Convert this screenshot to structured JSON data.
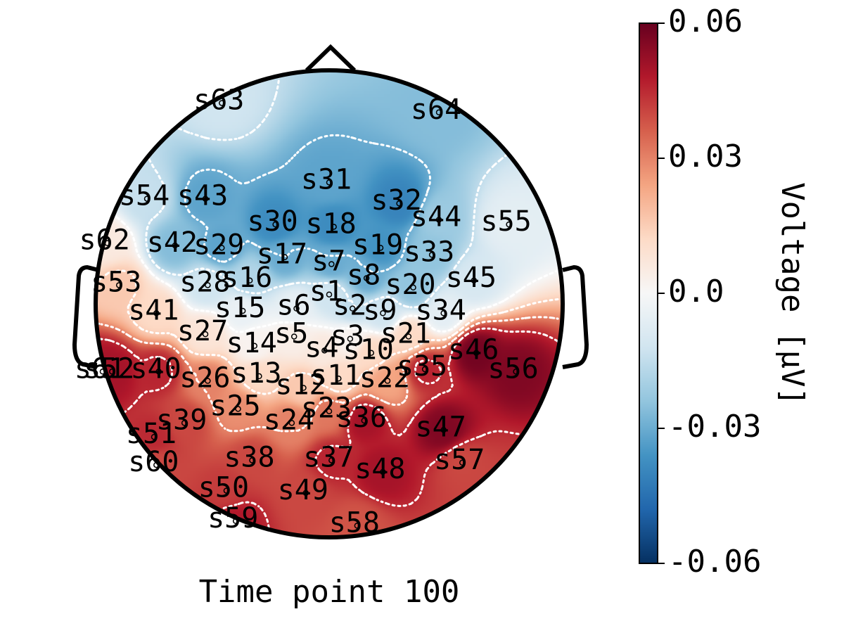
{
  "chart_data": {
    "type": "heatmap",
    "subtype": "topographic-map",
    "title": "Time point 100",
    "colorbar": {
      "label": "Voltage [µV]",
      "range": [
        -0.06,
        0.06
      ],
      "ticks": [
        {
          "value": 0.06,
          "label": "0.06"
        },
        {
          "value": 0.03,
          "label": "0.03"
        },
        {
          "value": 0.0,
          "label": "0.0"
        },
        {
          "value": -0.03,
          "label": "-0.03"
        },
        {
          "value": -0.06,
          "label": "-0.06"
        }
      ],
      "colormap": [
        "#053061",
        "#2166ac",
        "#4393c3",
        "#92c5de",
        "#d1e5f0",
        "#f7f7f7",
        "#fddbc7",
        "#f4a582",
        "#d6604d",
        "#b2182b",
        "#67001f"
      ]
    },
    "contours": {
      "color": "#ffffff",
      "style": "dotted"
    },
    "sensors": [
      {
        "name": "s1",
        "x": 0.0,
        "y": 0.04,
        "value": -0.012
      },
      {
        "name": "s2",
        "x": 0.1,
        "y": -0.02,
        "value": -0.015
      },
      {
        "name": "s3",
        "x": 0.09,
        "y": -0.15,
        "value": 0.002
      },
      {
        "name": "s4",
        "x": -0.02,
        "y": -0.2,
        "value": 0.006
      },
      {
        "name": "s5",
        "x": -0.15,
        "y": -0.14,
        "value": 0.004
      },
      {
        "name": "s6",
        "x": -0.14,
        "y": -0.02,
        "value": -0.005
      },
      {
        "name": "s7",
        "x": 0.01,
        "y": 0.17,
        "value": -0.03
      },
      {
        "name": "s8",
        "x": 0.16,
        "y": 0.11,
        "value": -0.03
      },
      {
        "name": "s9",
        "x": 0.23,
        "y": -0.04,
        "value": -0.012
      },
      {
        "name": "s10",
        "x": 0.18,
        "y": -0.21,
        "value": 0.012
      },
      {
        "name": "s11",
        "x": 0.04,
        "y": -0.32,
        "value": 0.012
      },
      {
        "name": "s12",
        "x": -0.11,
        "y": -0.36,
        "value": 0.016
      },
      {
        "name": "s13",
        "x": -0.3,
        "y": -0.31,
        "value": 0.012
      },
      {
        "name": "s14",
        "x": -0.32,
        "y": -0.18,
        "value": 0.002
      },
      {
        "name": "s15",
        "x": -0.37,
        "y": -0.03,
        "value": -0.004
      },
      {
        "name": "s16",
        "x": -0.34,
        "y": 0.1,
        "value": -0.018
      },
      {
        "name": "s17",
        "x": -0.19,
        "y": 0.2,
        "value": -0.03
      },
      {
        "name": "s18",
        "x": 0.02,
        "y": 0.33,
        "value": -0.038
      },
      {
        "name": "s19",
        "x": 0.22,
        "y": 0.24,
        "value": -0.036
      },
      {
        "name": "s20",
        "x": 0.36,
        "y": 0.07,
        "value": -0.024
      },
      {
        "name": "s21",
        "x": 0.34,
        "y": -0.14,
        "value": 0.012
      },
      {
        "name": "s22",
        "x": 0.25,
        "y": -0.33,
        "value": 0.024
      },
      {
        "name": "s23",
        "x": 0.0,
        "y": -0.46,
        "value": 0.032
      },
      {
        "name": "s24",
        "x": -0.16,
        "y": -0.51,
        "value": 0.03
      },
      {
        "name": "s25",
        "x": -0.39,
        "y": -0.45,
        "value": 0.028
      },
      {
        "name": "s26",
        "x": -0.52,
        "y": -0.33,
        "value": 0.03
      },
      {
        "name": "s27",
        "x": -0.53,
        "y": -0.13,
        "value": 0.008
      },
      {
        "name": "s28",
        "x": -0.52,
        "y": 0.08,
        "value": -0.012
      },
      {
        "name": "s29",
        "x": -0.46,
        "y": 0.24,
        "value": -0.032
      },
      {
        "name": "s30",
        "x": -0.23,
        "y": 0.34,
        "value": -0.038
      },
      {
        "name": "s31",
        "x": 0.0,
        "y": 0.52,
        "value": -0.032
      },
      {
        "name": "s32",
        "x": 0.3,
        "y": 0.43,
        "value": -0.04
      },
      {
        "name": "s33",
        "x": 0.44,
        "y": 0.21,
        "value": -0.024
      },
      {
        "name": "s34",
        "x": 0.49,
        "y": -0.04,
        "value": -0.006
      },
      {
        "name": "s35",
        "x": 0.41,
        "y": -0.28,
        "value": 0.046
      },
      {
        "name": "s36",
        "x": 0.15,
        "y": -0.5,
        "value": 0.05
      },
      {
        "name": "s37",
        "x": 0.01,
        "y": -0.67,
        "value": 0.046
      },
      {
        "name": "s38",
        "x": -0.33,
        "y": -0.67,
        "value": 0.04
      },
      {
        "name": "s39",
        "x": -0.62,
        "y": -0.51,
        "value": 0.04
      },
      {
        "name": "s40",
        "x": -0.73,
        "y": -0.29,
        "value": 0.046
      },
      {
        "name": "s41",
        "x": -0.74,
        "y": -0.04,
        "value": 0.012
      },
      {
        "name": "s42",
        "x": -0.66,
        "y": 0.25,
        "value": -0.026
      },
      {
        "name": "s43",
        "x": -0.53,
        "y": 0.45,
        "value": -0.032
      },
      {
        "name": "s44",
        "x": 0.47,
        "y": 0.36,
        "value": -0.022
      },
      {
        "name": "s45",
        "x": 0.62,
        "y": 0.1,
        "value": -0.01
      },
      {
        "name": "s46",
        "x": 0.63,
        "y": -0.21,
        "value": 0.058
      },
      {
        "name": "s47",
        "x": 0.49,
        "y": -0.54,
        "value": 0.056
      },
      {
        "name": "s48",
        "x": 0.23,
        "y": -0.72,
        "value": 0.05
      },
      {
        "name": "s49",
        "x": -0.1,
        "y": -0.81,
        "value": 0.04
      },
      {
        "name": "s50",
        "x": -0.44,
        "y": -0.8,
        "value": 0.042
      },
      {
        "name": "s51",
        "x": -0.75,
        "y": -0.57,
        "value": 0.045
      },
      {
        "name": "s52",
        "x": -0.93,
        "y": -0.29,
        "value": 0.05
      },
      {
        "name": "s53",
        "x": -0.9,
        "y": 0.08,
        "value": 0.016
      },
      {
        "name": "s54",
        "x": -0.78,
        "y": 0.45,
        "value": -0.014
      },
      {
        "name": "s55",
        "x": 0.77,
        "y": 0.34,
        "value": -0.006
      },
      {
        "name": "s56",
        "x": 0.8,
        "y": -0.29,
        "value": 0.056
      },
      {
        "name": "s57",
        "x": 0.57,
        "y": -0.68,
        "value": 0.04
      },
      {
        "name": "s58",
        "x": 0.12,
        "y": -0.95,
        "value": 0.038
      },
      {
        "name": "s59",
        "x": -0.4,
        "y": -0.93,
        "value": 0.048
      },
      {
        "name": "s60",
        "x": -0.74,
        "y": -0.69,
        "value": 0.04
      },
      {
        "name": "s61",
        "x": -0.97,
        "y": -0.29,
        "value": 0.05
      },
      {
        "name": "s62",
        "x": -0.95,
        "y": 0.26,
        "value": 0.006
      },
      {
        "name": "s63",
        "x": -0.46,
        "y": 0.86,
        "value": -0.012
      },
      {
        "name": "s64",
        "x": 0.47,
        "y": 0.82,
        "value": -0.026
      }
    ]
  }
}
